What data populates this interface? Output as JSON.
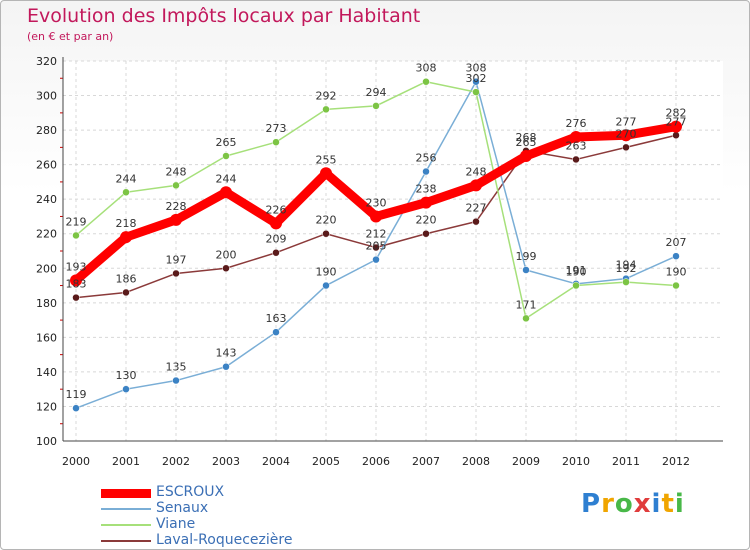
{
  "chart_data": {
    "type": "line",
    "title": "Evolution des Impôts locaux par Habitant",
    "subtitle": "(en € et par an)",
    "x": [
      "2000",
      "2001",
      "2002",
      "2003",
      "2004",
      "2005",
      "2006",
      "2007",
      "2008",
      "2009",
      "2010",
      "2011",
      "2012"
    ],
    "ylim": [
      100,
      320
    ],
    "yticks": [
      100,
      120,
      140,
      160,
      180,
      200,
      220,
      240,
      260,
      280,
      300,
      320
    ],
    "grid": true,
    "legend_position": "bottom-left",
    "series": [
      {
        "name": "ESCROUX",
        "color": "#ff0000",
        "marker_color": "#ff0000",
        "weight": "thick",
        "values": [
          193,
          218,
          228,
          244,
          226,
          255,
          230,
          238,
          248,
          265,
          276,
          277,
          282
        ]
      },
      {
        "name": "Senaux",
        "color": "#7aaed6",
        "marker_color": "#3b82c4",
        "weight": "thin",
        "values": [
          119,
          130,
          135,
          143,
          163,
          190,
          205,
          256,
          308,
          199,
          191,
          194,
          207
        ]
      },
      {
        "name": "Viane",
        "color": "#a6e07a",
        "marker_color": "#7cc444",
        "weight": "thin",
        "values": [
          219,
          244,
          248,
          265,
          273,
          292,
          294,
          308,
          302,
          171,
          190,
          192,
          190
        ]
      },
      {
        "name": "Laval-Roquecezière",
        "color": "#8b3a3a",
        "marker_color": "#5a1a1a",
        "weight": "thin",
        "values": [
          183,
          186,
          197,
          200,
          209,
          220,
          212,
          220,
          227,
          268,
          263,
          270,
          277
        ]
      }
    ]
  },
  "brand": {
    "letters": [
      "P",
      "r",
      "o",
      "x",
      "i",
      "t",
      "i"
    ],
    "colors": [
      "#2e7fd1",
      "#f0a500",
      "#48b848",
      "#e03c3c",
      "#2e7fd1",
      "#f0a500",
      "#48b848"
    ]
  }
}
